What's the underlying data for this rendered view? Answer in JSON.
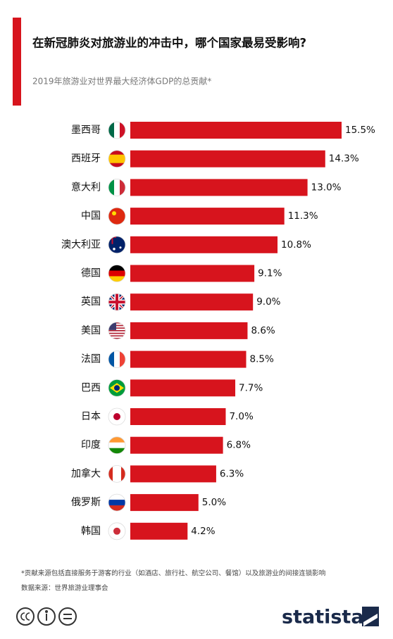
{
  "chart_data": {
    "type": "bar",
    "orientation": "horizontal",
    "title": "在新冠肺炎对旅游业的冲击中，哪个国家最易受影响?",
    "subtitle": "2019年旅游业对世界最大经济体GDP的总贡献*",
    "categories": [
      "墨西哥",
      "西班牙",
      "意大利",
      "中国",
      "澳大利亚",
      "德国",
      "英国",
      "美国",
      "法国",
      "巴西",
      "日本",
      "印度",
      "加拿大",
      "俄罗斯",
      "韩国"
    ],
    "values": [
      15.5,
      14.3,
      13.0,
      11.3,
      10.8,
      9.1,
      9.0,
      8.6,
      8.5,
      7.7,
      7.0,
      6.8,
      6.3,
      5.0,
      4.2
    ],
    "value_labels": [
      "15.5%",
      "14.3%",
      "13.0%",
      "11.3%",
      "10.8%",
      "9.1%",
      "9.0%",
      "8.6%",
      "8.5%",
      "7.7%",
      "7.0%",
      "6.8%",
      "6.3%",
      "5.0%",
      "4.2%"
    ],
    "color": "#d7141d",
    "footnote": "*贡献来源包括直接服务于游客的行业（如酒店、旅行社、航空公司、餐馆）以及旅游业的间接连锁影响",
    "source": "数据来源：世界旅游业理事会",
    "brand": "statista"
  }
}
